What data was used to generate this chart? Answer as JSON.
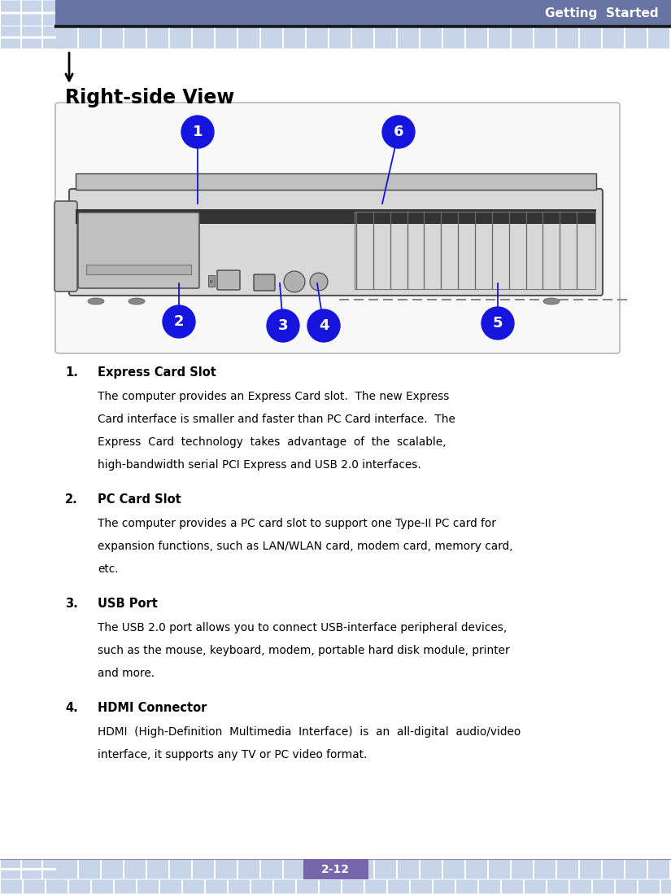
{
  "page_width": 8.25,
  "page_height": 10.98,
  "dpi": 100,
  "bg_color": "#ffffff",
  "header_bg": "#6674a4",
  "header_text": "Getting  Started",
  "header_text_color": "#ffffff",
  "tile_color_light": "#c8d4e8",
  "footer_page": "2-12",
  "footer_bg": "#7766aa",
  "footer_text_color": "#ffffff",
  "section_title": "Right-side View",
  "callout_color": "#1515dd",
  "callout_text_color": "#ffffff",
  "items": [
    {
      "number": "1.",
      "title": "Express Card Slot",
      "body_lines": [
        "The computer provides an Express Card slot.  The new Express",
        "Card interface is smaller and faster than PC Card interface.  The",
        "Express  Card  technology  takes  advantage  of  the  scalable,",
        "high-bandwidth serial PCI Express and USB 2.0 interfaces."
      ]
    },
    {
      "number": "2.",
      "title": "PC Card Slot",
      "body_lines": [
        "The computer provides a PC card slot to support one Type-II PC card for",
        "expansion functions, such as LAN/WLAN card, modem card, memory card,",
        "etc."
      ]
    },
    {
      "number": "3.",
      "title": "USB Port",
      "body_lines": [
        "The USB 2.0 port allows you to connect USB-interface peripheral devices,",
        "such as the mouse, keyboard, modem, portable hard disk module, printer",
        "and more."
      ]
    },
    {
      "number": "4.",
      "title": "HDMI Connector",
      "body_lines": [
        "HDMI  (High-Definition  Multimedia  Interface)  is  an  all-digital  audio/video",
        "interface, it supports any TV or PC video format."
      ]
    }
  ]
}
